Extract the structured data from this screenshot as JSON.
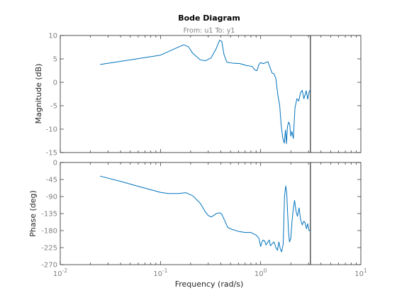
{
  "chart_data": {
    "type": "line",
    "title": "Bode Diagram",
    "subtitle": "From: u1  To: y1",
    "xlabel": "Frequency  (rad/s)",
    "xscale": "log",
    "xlim": [
      0.01,
      10
    ],
    "xticks": [
      0.01,
      0.1,
      1,
      10
    ],
    "xtick_labels": [
      {
        "base": "10",
        "exp": "-2"
      },
      {
        "base": "10",
        "exp": "-1"
      },
      {
        "base": "10",
        "exp": "0"
      },
      {
        "base": "10",
        "exp": "1"
      }
    ],
    "vline_x": 3.14,
    "line_color": "#0072bd",
    "axes_color": "#262626",
    "tick_color": "#808080",
    "panels": [
      {
        "name": "magnitude",
        "ylabel": "Magnitude (dB)",
        "ylim": [
          -15,
          10
        ],
        "yticks": [
          -15,
          -10,
          -5,
          0,
          5,
          10
        ],
        "x": [
          0.025,
          0.05,
          0.1,
          0.14,
          0.17,
          0.19,
          0.21,
          0.25,
          0.28,
          0.32,
          0.36,
          0.39,
          0.41,
          0.43,
          0.46,
          0.52,
          0.62,
          0.72,
          0.82,
          0.88,
          0.92,
          0.96,
          1.0,
          1.06,
          1.12,
          1.18,
          1.24,
          1.3,
          1.36,
          1.42,
          1.48,
          1.55,
          1.6,
          1.66,
          1.72,
          1.77,
          1.81,
          1.85,
          1.9,
          1.95,
          2.0,
          2.05,
          2.12,
          2.2,
          2.3,
          2.4,
          2.5,
          2.6,
          2.7,
          2.85,
          2.95,
          3.05,
          3.14
        ],
        "y": [
          3.8,
          4.8,
          5.8,
          7.2,
          8.0,
          7.6,
          6.2,
          4.8,
          4.6,
          5.2,
          7.2,
          9.0,
          8.7,
          6.0,
          4.3,
          4.1,
          4.0,
          3.6,
          3.4,
          2.6,
          2.5,
          3.8,
          4.2,
          4.0,
          4.2,
          4.4,
          3.2,
          2.0,
          1.8,
          0.8,
          -2.5,
          -5.0,
          -9.0,
          -11.8,
          -13.0,
          -10.2,
          -13.1,
          -9.5,
          -8.5,
          -9.0,
          -11.5,
          -10.5,
          -12.0,
          -5.5,
          -3.5,
          -4.0,
          -2.2,
          -1.7,
          -3.5,
          -1.8,
          -3.6,
          -2.0,
          -1.6
        ]
      },
      {
        "name": "phase",
        "ylabel": "Phase (deg)",
        "ylim": [
          -270,
          0
        ],
        "yticks": [
          -270,
          -225,
          -180,
          -135,
          -90,
          -45,
          0
        ],
        "x": [
          0.025,
          0.04,
          0.06,
          0.08,
          0.1,
          0.12,
          0.15,
          0.18,
          0.21,
          0.25,
          0.28,
          0.3,
          0.32,
          0.34,
          0.36,
          0.39,
          0.41,
          0.44,
          0.47,
          0.52,
          0.6,
          0.7,
          0.8,
          0.9,
          0.96,
          1.0,
          1.03,
          1.06,
          1.1,
          1.13,
          1.17,
          1.22,
          1.25,
          1.3,
          1.36,
          1.42,
          1.47,
          1.52,
          1.57,
          1.62,
          1.68,
          1.73,
          1.78,
          1.82,
          1.86,
          1.9,
          1.94,
          2.0,
          2.05,
          2.1,
          2.18,
          2.26,
          2.33,
          2.42,
          2.5,
          2.6,
          2.7,
          2.78,
          2.86,
          2.95,
          3.04,
          3.14
        ],
        "y": [
          -36,
          -50,
          -63,
          -72,
          -79,
          -82,
          -82,
          -80,
          -88,
          -108,
          -130,
          -140,
          -144,
          -140,
          -135,
          -133,
          -137,
          -155,
          -172,
          -177,
          -182,
          -185,
          -185,
          -192,
          -200,
          -222,
          -210,
          -205,
          -208,
          -218,
          -212,
          -205,
          -220,
          -215,
          -210,
          -225,
          -232,
          -210,
          -228,
          -236,
          -215,
          -90,
          -62,
          -80,
          -135,
          -185,
          -210,
          -200,
          -160,
          -130,
          -100,
          -130,
          -142,
          -120,
          -150,
          -165,
          -155,
          -160,
          -175,
          -162,
          -180,
          -180
        ]
      }
    ]
  }
}
